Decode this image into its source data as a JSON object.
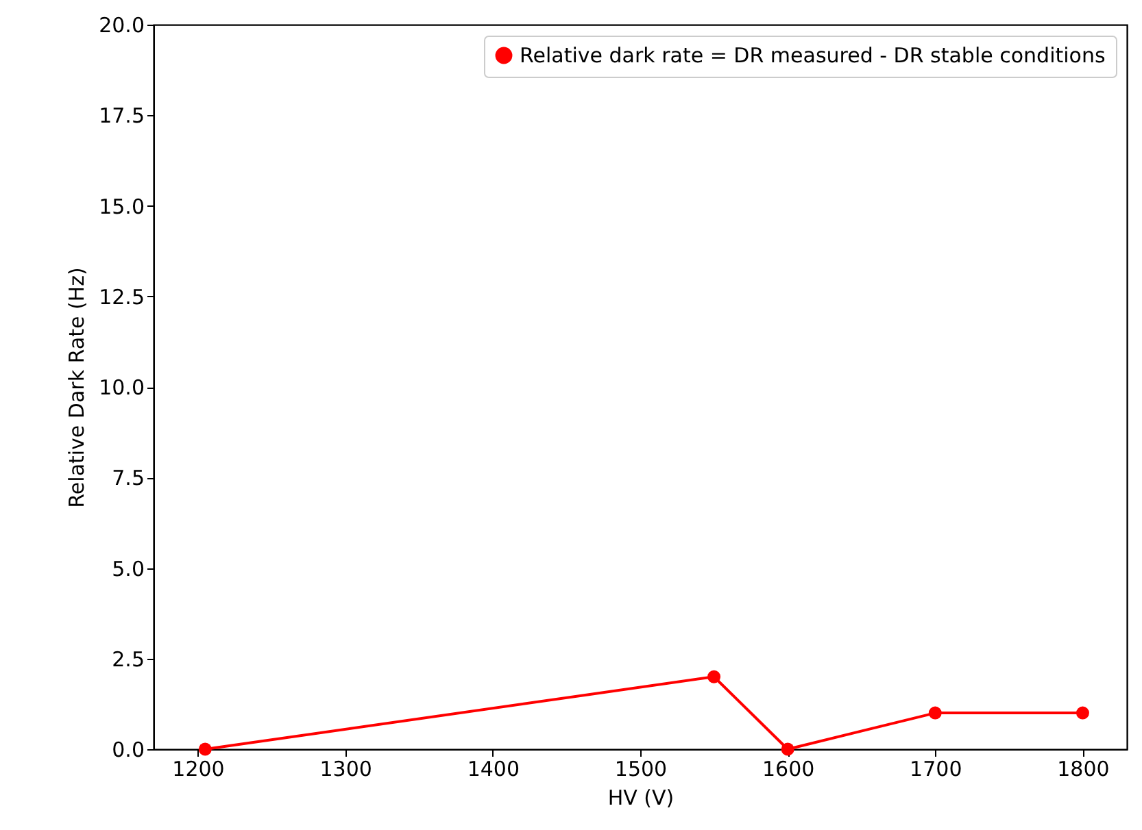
{
  "chart_data": {
    "type": "line",
    "xlabel": "HV (V)",
    "ylabel": "Relative Dark Rate (Hz)",
    "x": [
      1205,
      1550,
      1600,
      1700,
      1800
    ],
    "series": [
      {
        "name": "Relative dark rate = DR measured - DR stable conditions",
        "color": "#ff0000",
        "values": [
          0,
          2,
          0,
          1,
          1
        ]
      }
    ],
    "xlim": [
      1170,
      1830
    ],
    "xticks": [
      1200,
      1300,
      1400,
      1500,
      1600,
      1700,
      1800
    ],
    "ylim": [
      0,
      20
    ],
    "yticks": [
      {
        "value": 0,
        "label": "0.0"
      },
      2.5,
      {
        "value": 5,
        "label": "5.0"
      },
      7.5,
      {
        "value": 10,
        "label": "10.0"
      },
      12.5,
      {
        "value": 15,
        "label": "15.0"
      },
      17.5,
      {
        "value": 20,
        "label": "20.0"
      }
    ],
    "grid": false,
    "legend": "top right",
    "marker": "circle",
    "line_style": "solid"
  }
}
